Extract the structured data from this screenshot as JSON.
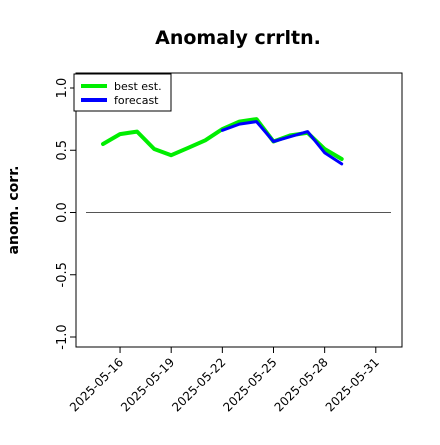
{
  "chart_data": {
    "type": "line",
    "title": "Anomaly crrltn.",
    "xlabel": "",
    "ylabel": "anom. corr.",
    "ylim": [
      -1.0,
      1.0
    ],
    "yticks": [
      "-1.0",
      "-0.5",
      "0.0",
      "0.5",
      "1.0"
    ],
    "xticks": [
      {
        "label": "2025-05-16",
        "color": "#000000"
      },
      {
        "label": "2025-05-19",
        "color": "#000000"
      },
      {
        "label": "2025-05-22",
        "color": "#228B22"
      },
      {
        "label": "2025-05-25",
        "color": "#000000"
      },
      {
        "label": "2025-05-28",
        "color": "#000000"
      },
      {
        "label": "2025-05-31",
        "color": "#000000"
      }
    ],
    "x": [
      "2025-05-15",
      "2025-05-16",
      "2025-05-17",
      "2025-05-18",
      "2025-05-19",
      "2025-05-20",
      "2025-05-21",
      "2025-05-22",
      "2025-05-23",
      "2025-05-24",
      "2025-05-25",
      "2025-05-26",
      "2025-05-27",
      "2025-05-28",
      "2025-05-29"
    ],
    "series": [
      {
        "name": "best est.",
        "color": "#00ee00",
        "values": [
          0.55,
          0.63,
          0.65,
          0.51,
          0.46,
          0.52,
          0.58,
          0.67,
          0.73,
          0.75,
          0.57,
          0.62,
          0.64,
          0.51,
          0.43
        ]
      },
      {
        "name": "forecast",
        "color": "#0000ff",
        "values": [
          null,
          null,
          null,
          null,
          null,
          null,
          null,
          0.66,
          0.71,
          0.73,
          0.57,
          0.61,
          0.65,
          0.48,
          0.39
        ]
      }
    ],
    "reference_line": 0.0,
    "legend_position": "top-left",
    "grid": false
  }
}
